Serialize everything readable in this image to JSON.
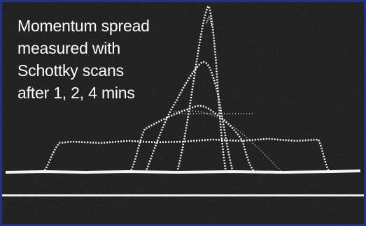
{
  "caption": {
    "lines": [
      "Momentum spread",
      "measured with",
      "Schottky scans",
      "after 1, 2, 4 mins"
    ]
  }
}
